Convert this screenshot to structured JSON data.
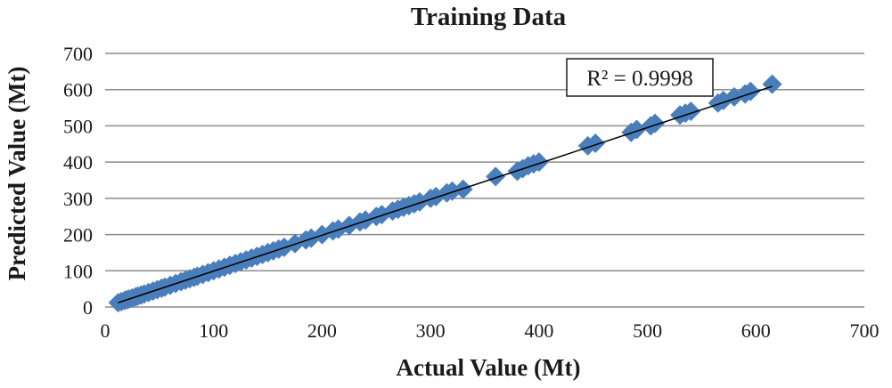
{
  "chart_data": {
    "type": "scatter",
    "title": "Training Data",
    "xlabel": "Actual Value (Mt)",
    "ylabel": "Predicted Value (Mt)",
    "xlim": [
      0,
      700
    ],
    "ylim": [
      0,
      700
    ],
    "xticks": [
      "0",
      "100",
      "200",
      "300",
      "400",
      "500",
      "600",
      "700"
    ],
    "yticks": [
      "0",
      "100",
      "200",
      "300",
      "400",
      "500",
      "600",
      "700"
    ],
    "grid": "horizontal",
    "legend": "none",
    "annotation": "R² = 0.9998",
    "marker_color": "#4a7ebb",
    "trendline": {
      "x": [
        12,
        615
      ],
      "y": [
        12,
        609
      ]
    },
    "series": [
      {
        "x": [
          12,
          15,
          18,
          20,
          22,
          25,
          28,
          30,
          33,
          36,
          40,
          44,
          48,
          52,
          55,
          60,
          65,
          70,
          74,
          78,
          82,
          85,
          90,
          95,
          100,
          105,
          110,
          115,
          120,
          125,
          130,
          135,
          140,
          145,
          150,
          155,
          160,
          165,
          175,
          185,
          190,
          200,
          210,
          215,
          225,
          235,
          240,
          250,
          255,
          265,
          270,
          275,
          280,
          285,
          290,
          300,
          305,
          315,
          320,
          330,
          360,
          380,
          385,
          390,
          395,
          400,
          445,
          452,
          485,
          490,
          503,
          507,
          530,
          535,
          540,
          565,
          570,
          580,
          590,
          595,
          615
        ],
        "y": [
          12,
          15,
          18,
          20,
          22,
          25,
          28,
          30,
          33,
          36,
          40,
          44,
          48,
          52,
          55,
          60,
          65,
          70,
          74,
          78,
          82,
          85,
          90,
          95,
          100,
          105,
          110,
          115,
          120,
          125,
          130,
          135,
          140,
          145,
          150,
          155,
          160,
          165,
          175,
          185,
          190,
          200,
          210,
          215,
          225,
          235,
          240,
          250,
          255,
          265,
          270,
          275,
          280,
          285,
          290,
          300,
          305,
          315,
          320,
          325,
          360,
          375,
          382,
          390,
          395,
          400,
          445,
          452,
          482,
          490,
          500,
          507,
          530,
          535,
          540,
          563,
          570,
          580,
          588,
          595,
          615
        ]
      }
    ]
  }
}
